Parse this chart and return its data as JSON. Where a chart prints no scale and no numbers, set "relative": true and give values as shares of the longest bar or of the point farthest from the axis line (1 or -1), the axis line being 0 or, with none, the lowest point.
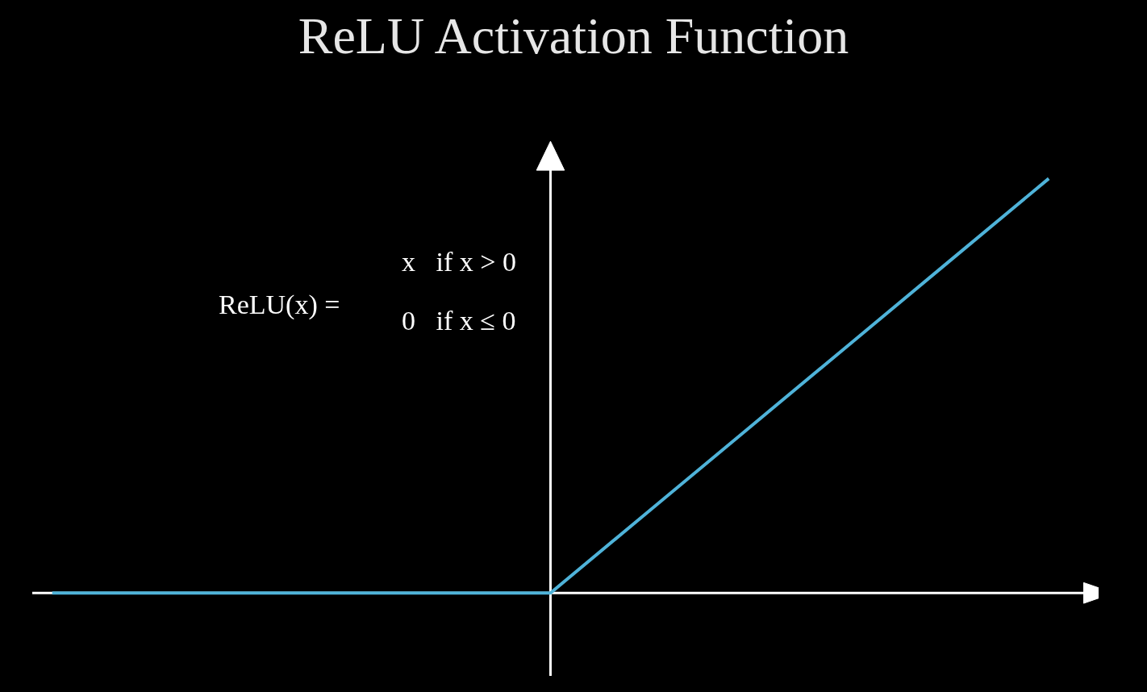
{
  "chart_data": {
    "type": "line",
    "title": "ReLU Activation Function",
    "categories": [
      null,
      null,
      null,
      null,
      null,
      null,
      null,
      null,
      null,
      null,
      null
    ],
    "series": [
      {
        "color": "#4fb3d9",
        "values": [
          0,
          0,
          0,
          0,
          0,
          0,
          0.2,
          0.4,
          0.6,
          0.8,
          1
        ]
      }
    ],
    "relative": true,
    "grid": false,
    "marker": "none",
    "line_style": "solid",
    "annotations": [
      "ReLU(x) =",
      "x   if x > 0",
      "0   if x ≤ 0"
    ]
  }
}
